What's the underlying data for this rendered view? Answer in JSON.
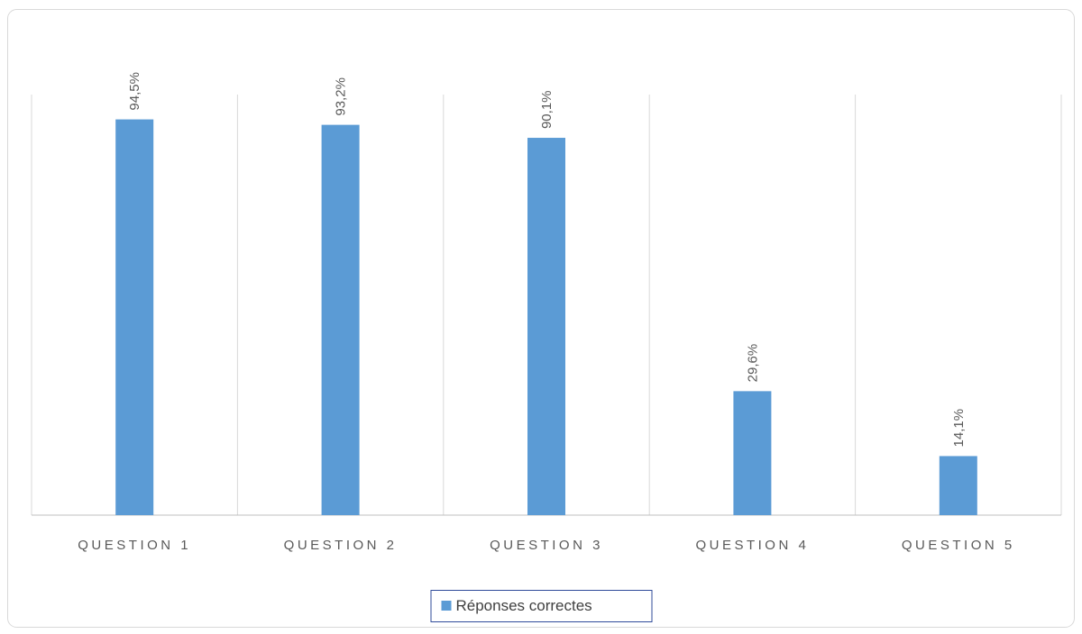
{
  "chart_data": {
    "type": "bar",
    "categories": [
      "QUESTION 1",
      "QUESTION 2",
      "QUESTION 3",
      "QUESTION 4",
      "QUESTION 5"
    ],
    "series": [
      {
        "name": "Réponses correctes",
        "color": "#5b9bd5",
        "values": [
          94.5,
          93.2,
          90.1,
          29.6,
          14.1
        ],
        "value_labels": [
          "94,5%",
          "93,2%",
          "90,1%",
          "29,6%",
          "14,1%"
        ]
      }
    ],
    "ylim": [
      0,
      100
    ],
    "legend": "bottom"
  }
}
